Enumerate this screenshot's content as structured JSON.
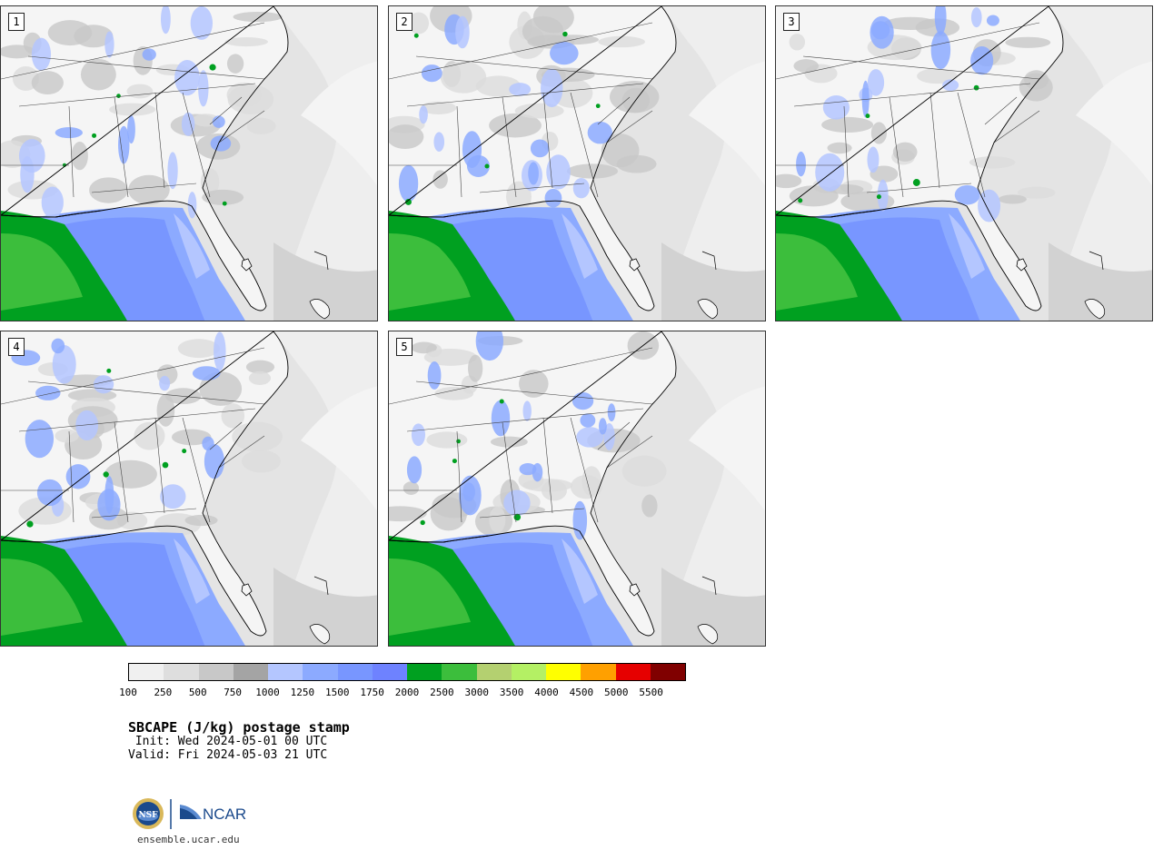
{
  "panels": [
    {
      "label": "1"
    },
    {
      "label": "2"
    },
    {
      "label": "3"
    },
    {
      "label": "4"
    },
    {
      "label": "5"
    }
  ],
  "colorbar": {
    "colors": [
      "#f0f0f0",
      "#dedede",
      "#c8c8c8",
      "#a4a4a4",
      "#b4c6ff",
      "#8caaff",
      "#7896ff",
      "#6e82ff",
      "#00a020",
      "#3cbe3c",
      "#b4d070",
      "#b4f064",
      "#ffff00",
      "#ffa000",
      "#e60000",
      "#800000"
    ],
    "tick_labels": [
      "100",
      "250",
      "500",
      "750",
      "1000",
      "1250",
      "1500",
      "1750",
      "2000",
      "2500",
      "3000",
      "3500",
      "4000",
      "4500",
      "5000",
      "5500"
    ]
  },
  "title": "SBCAPE (J/kg) postage stamp",
  "init": " Init: Wed 2024-05-01 00 UTC",
  "valid": "Valid: Fri 2024-05-03 21 UTC",
  "logo": {
    "nsf": "NSF",
    "ncar": "NCAR",
    "url": "ensemble.ucar.edu"
  }
}
